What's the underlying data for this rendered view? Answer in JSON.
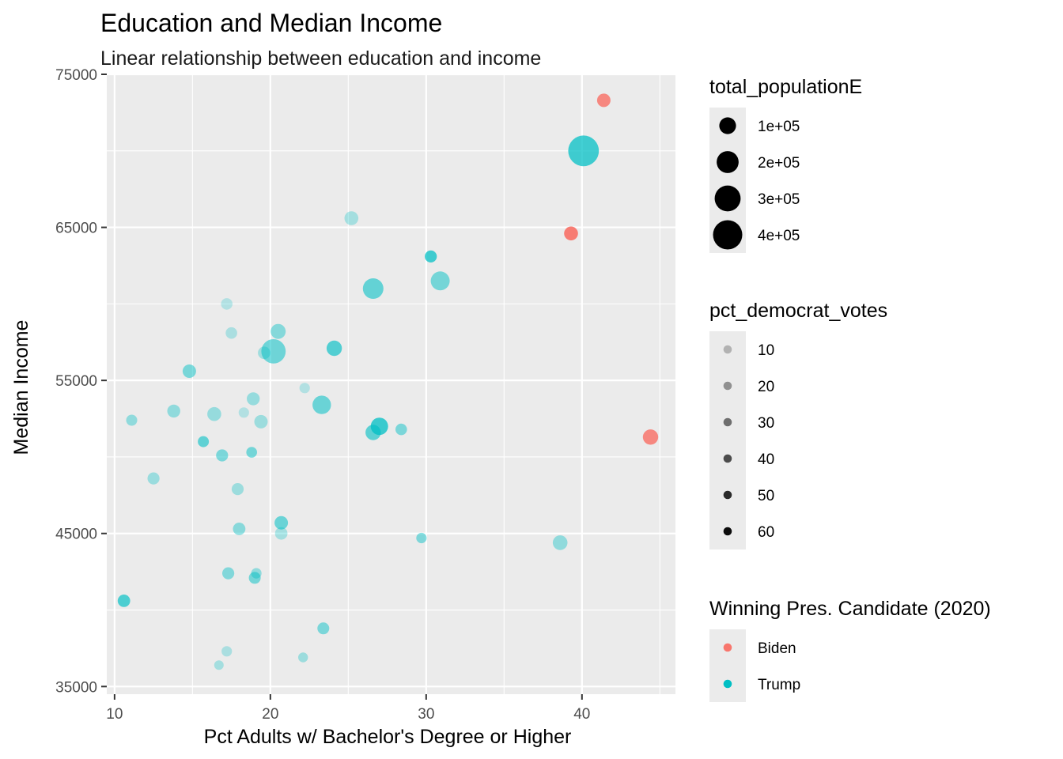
{
  "chart_data": {
    "type": "scatter",
    "title": "Education and Median Income",
    "subtitle": "Linear relationship between education and income",
    "xlabel": "Pct Adults w/ Bachelor's Degree or Higher",
    "ylabel": "Median Income",
    "xlim": [
      9.5,
      46
    ],
    "ylim": [
      34500,
      75000
    ],
    "x_ticks": [
      10,
      20,
      30,
      40
    ],
    "x_tick_labels": [
      "10",
      "20",
      "30",
      "40"
    ],
    "x_minor_ticks": [
      15,
      25,
      35,
      45
    ],
    "y_ticks": [
      35000,
      45000,
      55000,
      65000,
      75000
    ],
    "y_tick_labels": [
      "35000",
      "45000",
      "55000",
      "65000",
      "75000"
    ],
    "y_minor_ticks": [
      40000,
      50000,
      60000,
      70000
    ],
    "grid": true,
    "legend_placement": "right",
    "colors": {
      "Biden": "#F8766D",
      "Trump": "#00BFC4",
      "panel": "#EBEBEB",
      "grid": "#FFFFFF",
      "legend_key": "#000000",
      "legend_key_bg": "#EBEBEB"
    },
    "legends": {
      "size": {
        "title": "total_populationE",
        "entries": [
          {
            "label": "1e+05",
            "value": 100000
          },
          {
            "label": "2e+05",
            "value": 200000
          },
          {
            "label": "3e+05",
            "value": 300000
          },
          {
            "label": "4e+05",
            "value": 400000
          }
        ]
      },
      "alpha": {
        "title": "pct_democrat_votes",
        "entries": [
          {
            "label": "10",
            "value": 10
          },
          {
            "label": "20",
            "value": 20
          },
          {
            "label": "30",
            "value": 30
          },
          {
            "label": "40",
            "value": 40
          },
          {
            "label": "50",
            "value": 50
          },
          {
            "label": "60",
            "value": 60
          }
        ]
      },
      "color": {
        "title": "Winning Pres. Candidate (2020)",
        "entries": [
          {
            "label": "Biden"
          },
          {
            "label": "Trump"
          }
        ]
      }
    },
    "points": [
      {
        "x": 41.4,
        "y": 73300,
        "pop": 55000,
        "dem": 52,
        "winner": "Biden"
      },
      {
        "x": 40.1,
        "y": 70000,
        "pop": 445000,
        "dem": 44,
        "winner": "Trump"
      },
      {
        "x": 39.3,
        "y": 64600,
        "pop": 60000,
        "dem": 62,
        "winner": "Biden"
      },
      {
        "x": 44.4,
        "y": 51300,
        "pop": 80000,
        "dem": 52,
        "winner": "Biden"
      },
      {
        "x": 25.2,
        "y": 65600,
        "pop": 60000,
        "dem": 14,
        "winner": "Trump"
      },
      {
        "x": 30.3,
        "y": 63100,
        "pop": 40000,
        "dem": 44,
        "winner": "Trump"
      },
      {
        "x": 26.6,
        "y": 61000,
        "pop": 170000,
        "dem": 33,
        "winner": "Trump"
      },
      {
        "x": 30.9,
        "y": 61500,
        "pop": 140000,
        "dem": 28,
        "winner": "Trump"
      },
      {
        "x": 17.2,
        "y": 60000,
        "pop": 35000,
        "dem": 10,
        "winner": "Trump"
      },
      {
        "x": 20.5,
        "y": 58200,
        "pop": 75000,
        "dem": 23,
        "winner": "Trump"
      },
      {
        "x": 17.5,
        "y": 58100,
        "pop": 35000,
        "dem": 12,
        "winner": "Trump"
      },
      {
        "x": 24.1,
        "y": 57100,
        "pop": 80000,
        "dem": 38,
        "winner": "Trump"
      },
      {
        "x": 19.6,
        "y": 56800,
        "pop": 45000,
        "dem": 15,
        "winner": "Trump"
      },
      {
        "x": 20.2,
        "y": 56900,
        "pop": 260000,
        "dem": 30,
        "winner": "Trump"
      },
      {
        "x": 14.8,
        "y": 55600,
        "pop": 55000,
        "dem": 27,
        "winner": "Trump"
      },
      {
        "x": 22.2,
        "y": 54500,
        "pop": 25000,
        "dem": 10,
        "winner": "Trump"
      },
      {
        "x": 18.9,
        "y": 53800,
        "pop": 50000,
        "dem": 18,
        "winner": "Trump"
      },
      {
        "x": 23.3,
        "y": 53400,
        "pop": 130000,
        "dem": 31,
        "winner": "Trump"
      },
      {
        "x": 13.8,
        "y": 53000,
        "pop": 50000,
        "dem": 20,
        "winner": "Trump"
      },
      {
        "x": 16.4,
        "y": 52800,
        "pop": 60000,
        "dem": 18,
        "winner": "Trump"
      },
      {
        "x": 18.3,
        "y": 52900,
        "pop": 25000,
        "dem": 10,
        "winner": "Trump"
      },
      {
        "x": 11.1,
        "y": 52400,
        "pop": 30000,
        "dem": 20,
        "winner": "Trump"
      },
      {
        "x": 19.4,
        "y": 52300,
        "pop": 55000,
        "dem": 16,
        "winner": "Trump"
      },
      {
        "x": 27.0,
        "y": 52000,
        "pop": 110000,
        "dem": 45,
        "winner": "Trump"
      },
      {
        "x": 26.6,
        "y": 51600,
        "pop": 80000,
        "dem": 35,
        "winner": "Trump"
      },
      {
        "x": 28.4,
        "y": 51800,
        "pop": 35000,
        "dem": 26,
        "winner": "Trump"
      },
      {
        "x": 15.7,
        "y": 51000,
        "pop": 30000,
        "dem": 34,
        "winner": "Trump"
      },
      {
        "x": 18.8,
        "y": 50300,
        "pop": 28000,
        "dem": 28,
        "winner": "Trump"
      },
      {
        "x": 16.9,
        "y": 50100,
        "pop": 40000,
        "dem": 26,
        "winner": "Trump"
      },
      {
        "x": 12.5,
        "y": 48600,
        "pop": 40000,
        "dem": 17,
        "winner": "Trump"
      },
      {
        "x": 17.9,
        "y": 47900,
        "pop": 40000,
        "dem": 16,
        "winner": "Trump"
      },
      {
        "x": 20.7,
        "y": 45700,
        "pop": 55000,
        "dem": 31,
        "winner": "Trump"
      },
      {
        "x": 18.0,
        "y": 45300,
        "pop": 45000,
        "dem": 22,
        "winner": "Trump"
      },
      {
        "x": 20.7,
        "y": 45000,
        "pop": 45000,
        "dem": 14,
        "winner": "Trump"
      },
      {
        "x": 29.7,
        "y": 44700,
        "pop": 25000,
        "dem": 25,
        "winner": "Trump"
      },
      {
        "x": 38.6,
        "y": 44400,
        "pop": 70000,
        "dem": 20,
        "winner": "Trump"
      },
      {
        "x": 17.3,
        "y": 42400,
        "pop": 40000,
        "dem": 24,
        "winner": "Trump"
      },
      {
        "x": 19.1,
        "y": 42400,
        "pop": 25000,
        "dem": 20,
        "winner": "Trump"
      },
      {
        "x": 19.0,
        "y": 42100,
        "pop": 38000,
        "dem": 28,
        "winner": "Trump"
      },
      {
        "x": 10.6,
        "y": 40600,
        "pop": 45000,
        "dem": 40,
        "winner": "Trump"
      },
      {
        "x": 23.4,
        "y": 38800,
        "pop": 38000,
        "dem": 26,
        "winner": "Trump"
      },
      {
        "x": 17.2,
        "y": 37300,
        "pop": 25000,
        "dem": 12,
        "winner": "Trump"
      },
      {
        "x": 22.1,
        "y": 36900,
        "pop": 20000,
        "dem": 16,
        "winner": "Trump"
      },
      {
        "x": 16.7,
        "y": 36400,
        "pop": 18000,
        "dem": 14,
        "winner": "Trump"
      }
    ]
  }
}
